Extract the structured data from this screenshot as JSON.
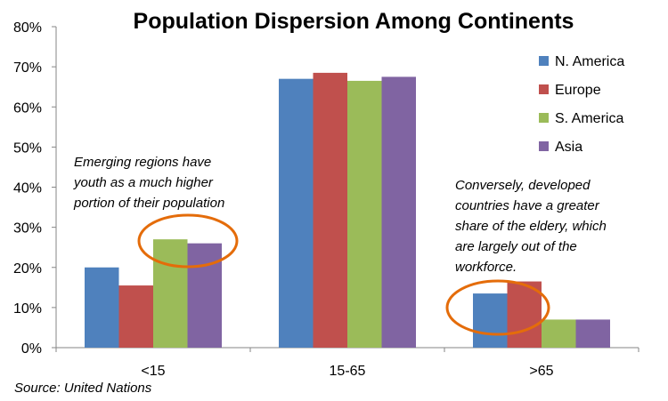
{
  "chart_data": {
    "type": "bar",
    "title": "Population Dispersion Among Continents",
    "categories": [
      "<15",
      "15-65",
      ">65"
    ],
    "series": [
      {
        "name": "N. America",
        "color": "#4f81bd",
        "values": [
          20,
          67,
          13.5
        ]
      },
      {
        "name": "Europe",
        "color": "#c0504d",
        "values": [
          15.5,
          68.5,
          16.5
        ]
      },
      {
        "name": "S. America",
        "color": "#9bbb59",
        "values": [
          27,
          66.5,
          7
        ]
      },
      {
        "name": "Asia",
        "color": "#8064a2",
        "values": [
          26,
          67.5,
          7
        ]
      }
    ],
    "ylim": [
      0,
      80
    ],
    "yticks": [
      "0%",
      "10%",
      "20%",
      "30%",
      "40%",
      "50%",
      "60%",
      "70%",
      "80%"
    ],
    "xlabel": "",
    "ylabel": "",
    "legend": "right",
    "annotations": [
      {
        "lines": [
          "Emerging regions have",
          "youth as a much higher",
          "portion of their population"
        ],
        "highlight": "<15 S. America and Asia"
      },
      {
        "lines": [
          "Conversely, developed",
          "countries have a greater",
          "share of the eldery, which",
          "are largely out of the",
          "workforce."
        ],
        "highlight": ">65 N. America and Europe"
      }
    ],
    "highlight_color": "#e46c0a"
  },
  "source": "Source: United Nations"
}
